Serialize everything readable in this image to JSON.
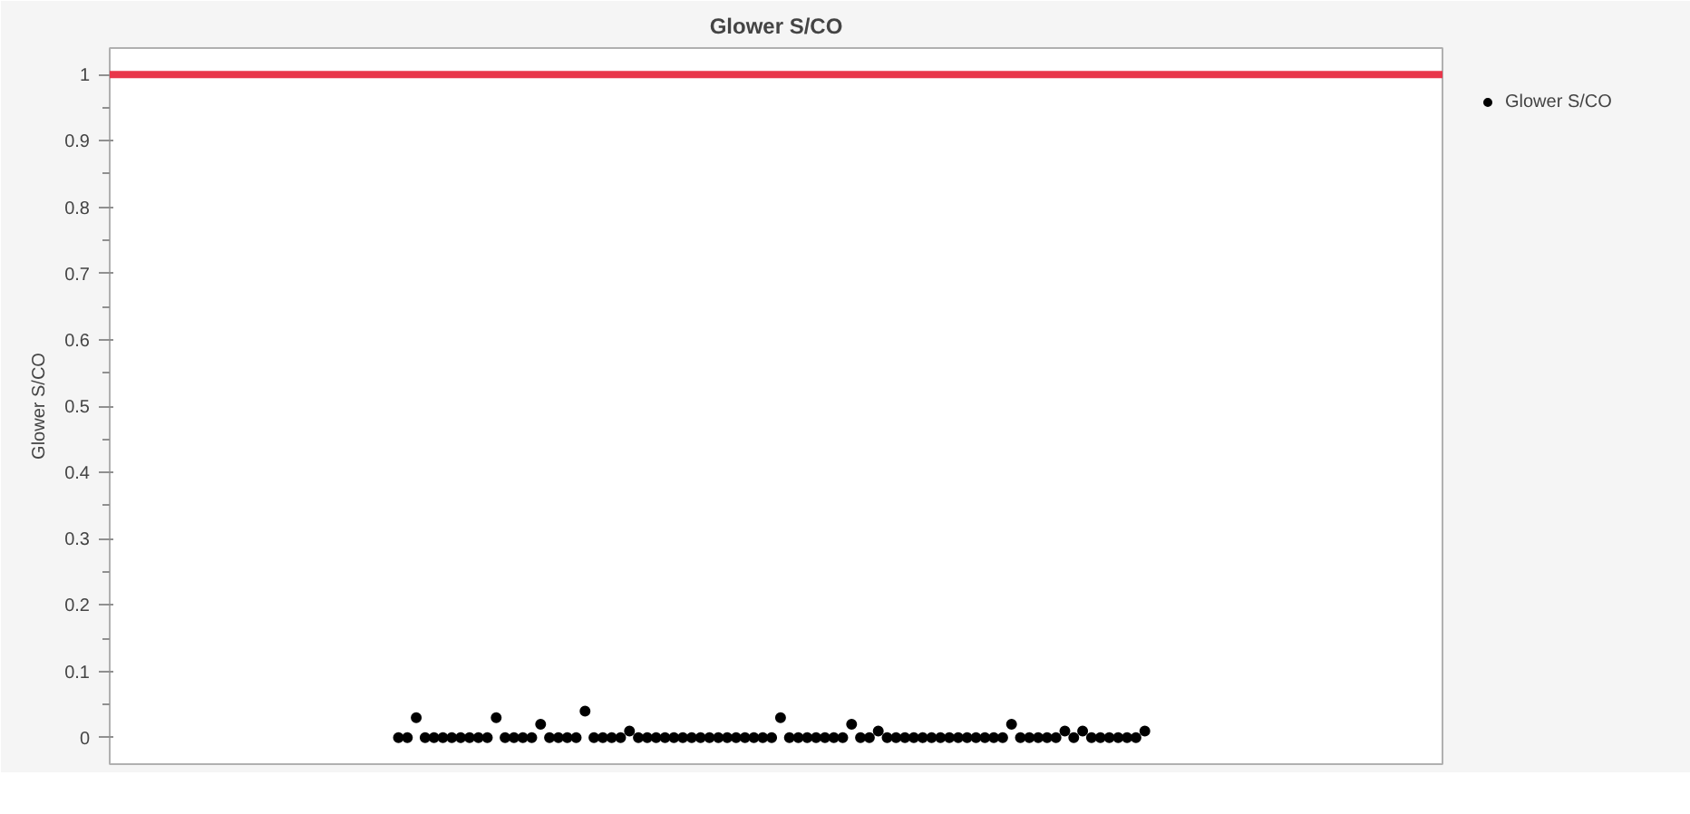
{
  "chart_data": {
    "type": "scatter",
    "title": "Glower S/CO",
    "ylabel": "Glower S/CO",
    "categories": [
      null,
      null,
      null,
      null,
      null,
      null,
      null,
      null,
      null,
      null,
      null,
      null,
      null,
      null,
      null,
      null,
      null,
      null,
      null,
      null,
      null,
      null,
      null,
      null,
      null,
      null,
      null,
      null,
      null,
      null,
      null,
      null,
      null,
      null,
      null,
      null,
      null,
      null,
      null,
      null,
      null,
      null,
      null,
      null,
      null,
      null,
      null,
      null,
      null,
      null,
      null,
      null,
      null,
      null,
      null,
      null,
      null,
      null,
      null,
      null,
      null,
      null,
      null,
      null,
      null,
      null,
      null,
      null,
      null,
      null,
      null,
      null,
      null,
      null,
      null,
      null,
      null,
      null,
      null,
      null,
      null,
      null,
      null,
      null,
      null,
      null,
      null,
      null,
      null,
      null,
      null,
      null,
      null,
      null,
      null,
      null,
      null,
      null,
      null,
      null,
      null,
      null,
      null,
      null,
      null,
      null,
      null,
      null,
      null,
      null,
      null,
      null,
      null,
      null,
      null,
      null,
      null,
      null,
      null,
      null,
      null,
      null,
      null,
      null,
      null,
      null,
      null,
      null,
      null,
      null,
      null,
      null,
      null,
      null,
      null,
      null,
      null,
      null,
      null,
      null,
      null,
      null,
      null,
      null,
      null,
      null,
      null,
      null,
      null,
      null
    ],
    "series": [
      {
        "name": "Glower S/CO",
        "color": "#000000",
        "values": [
          null,
          null,
          null,
          null,
          null,
          null,
          null,
          null,
          null,
          null,
          null,
          null,
          null,
          null,
          null,
          null,
          null,
          null,
          null,
          null,
          null,
          null,
          null,
          null,
          null,
          null,
          null,
          null,
          null,
          null,
          null,
          null,
          0,
          0,
          0.03,
          0,
          0,
          0,
          0,
          0,
          0,
          0,
          0,
          0.03,
          0,
          0,
          0,
          0,
          0.02,
          0,
          0,
          0,
          0,
          0.04,
          0,
          0,
          0,
          0,
          0.01,
          0,
          0,
          0,
          0,
          0,
          0,
          0,
          0,
          0,
          0,
          0,
          0,
          0,
          0,
          0,
          0,
          0.03,
          0,
          0,
          0,
          0,
          0,
          0,
          0,
          0.02,
          0,
          0,
          0.01,
          0,
          0,
          0,
          0,
          0,
          0,
          0,
          0,
          0,
          0,
          0,
          0,
          0,
          0,
          0.02,
          0,
          0,
          0,
          0,
          0,
          0.01,
          0,
          0.01,
          0,
          0,
          0,
          0,
          0,
          0,
          0.01,
          null,
          null,
          null,
          null,
          null,
          null,
          null,
          null,
          null,
          null,
          null,
          null,
          null,
          null,
          null,
          null,
          null,
          null,
          null,
          null,
          null,
          null,
          null,
          null,
          null,
          null,
          null,
          null,
          null,
          null,
          null,
          null,
          null
        ]
      }
    ],
    "ylim": [
      -0.04,
      1.04
    ],
    "yticks": [
      0,
      {
        "value": 0.05,
        "label": null
      },
      0.1,
      {
        "value": 0.15,
        "label": null
      },
      0.2,
      {
        "value": 0.25,
        "label": null
      },
      0.3,
      {
        "value": 0.35,
        "label": null
      },
      0.4,
      {
        "value": 0.45,
        "label": null
      },
      0.5,
      {
        "value": 0.55,
        "label": null
      },
      0.6,
      {
        "value": 0.65,
        "label": null
      },
      0.7,
      {
        "value": 0.75,
        "label": null
      },
      0.8,
      {
        "value": 0.85,
        "label": null
      },
      0.9,
      {
        "value": 0.95,
        "label": null
      },
      1
    ],
    "ref_lines": [
      {
        "axis": "y",
        "value": 1,
        "color": "#e8364a"
      }
    ],
    "marker": "circle",
    "legend": "top right",
    "tick_labels": "y"
  }
}
